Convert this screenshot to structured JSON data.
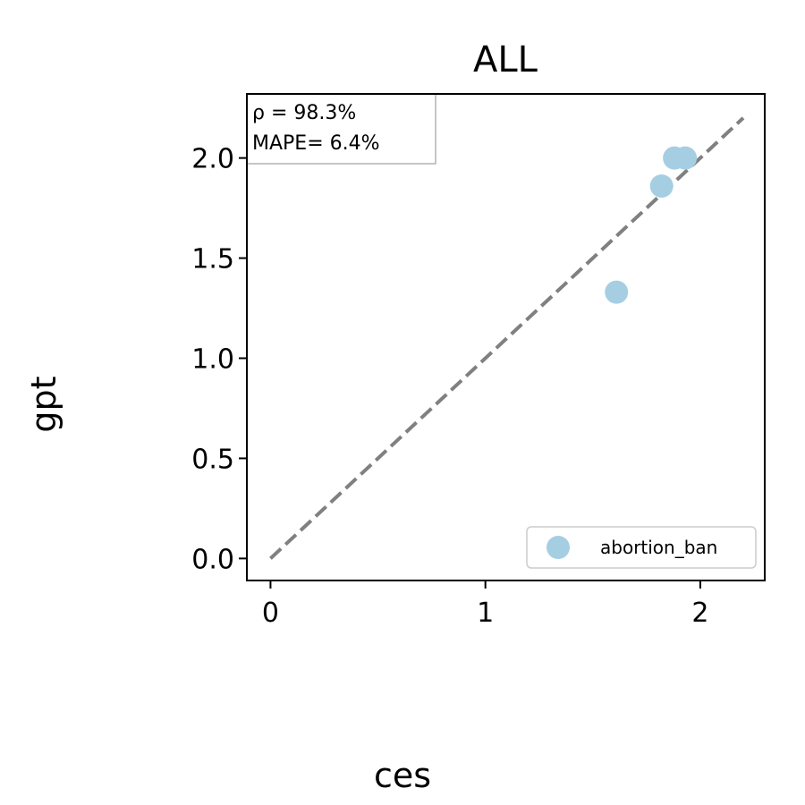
{
  "chart_data": {
    "type": "scatter",
    "title": "ALL",
    "xlabel": "ces",
    "ylabel": "gpt",
    "xlim": [
      -0.11,
      2.3
    ],
    "ylim": [
      -0.11,
      2.32
    ],
    "xticks": [
      0,
      1,
      2
    ],
    "xtick_labels": [
      "0",
      "1",
      "2"
    ],
    "yticks": [
      0.0,
      0.5,
      1.0,
      1.5,
      2.0
    ],
    "ytick_labels": [
      "0.0",
      "0.5",
      "1.0",
      "1.5",
      "2.0"
    ],
    "reference_line": {
      "style": "dashed",
      "color": "#808080",
      "from": [
        0,
        0
      ],
      "to": [
        2.2,
        2.2
      ]
    },
    "series": [
      {
        "name": "abortion_ban",
        "color": "#a6cee3",
        "points": [
          {
            "x": 1.61,
            "y": 1.33
          },
          {
            "x": 1.82,
            "y": 1.86
          },
          {
            "x": 1.88,
            "y": 2.0
          },
          {
            "x": 1.93,
            "y": 2.0
          }
        ]
      }
    ],
    "annotations": {
      "rho": "ρ = 98.3%",
      "mape": "MAPE= 6.4%"
    },
    "legend_position": "lower-right",
    "grid": false
  }
}
